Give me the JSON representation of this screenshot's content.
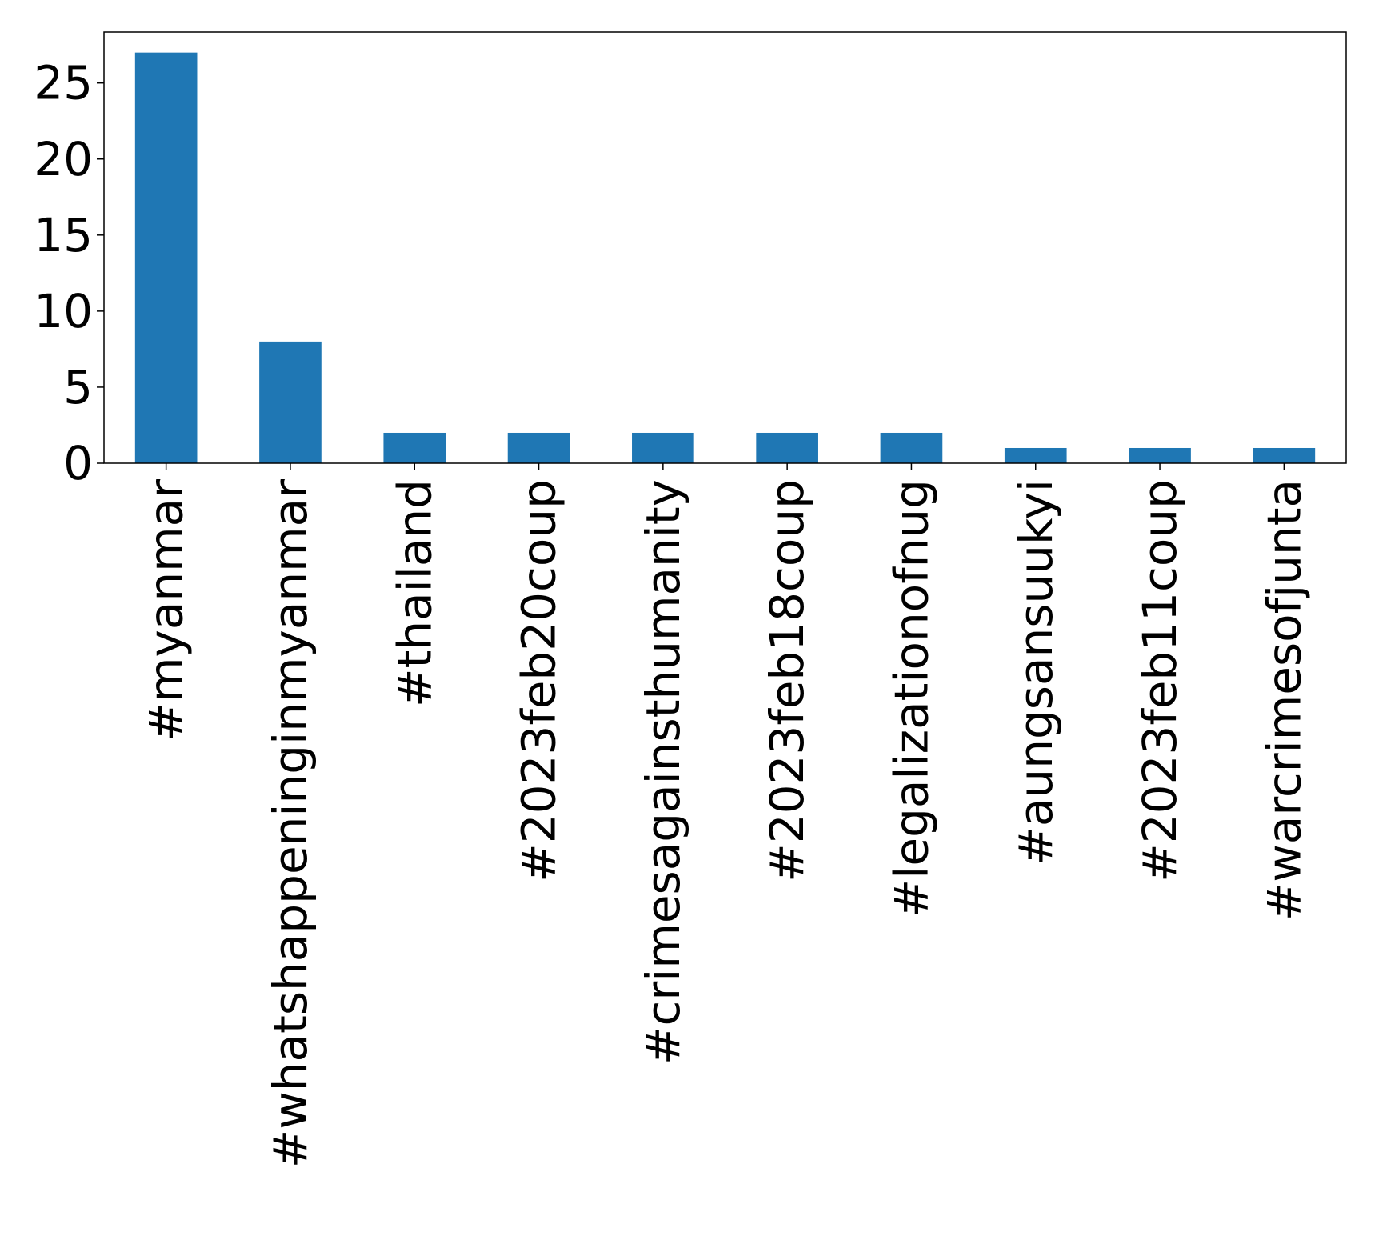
{
  "chart_data": {
    "type": "bar",
    "title": "",
    "xlabel": "",
    "ylabel": "",
    "categories": [
      "#myanmar",
      "#whatshappeninginmyanmar",
      "#thailand",
      "#2023feb20coup",
      "#crimesagainsthumanity",
      "#2023feb18coup",
      "#legalizationofnug",
      "#aungsansuukyi",
      "#2023feb11coup",
      "#warcrimesofjunta"
    ],
    "values": [
      27,
      8,
      2,
      2,
      2,
      2,
      2,
      1,
      1,
      1
    ],
    "ylim": [
      0,
      28.35
    ],
    "yticks": [
      0,
      5,
      10,
      15,
      20,
      25
    ],
    "grid": false,
    "legend": "none",
    "bar_color": "#1f77b4"
  }
}
